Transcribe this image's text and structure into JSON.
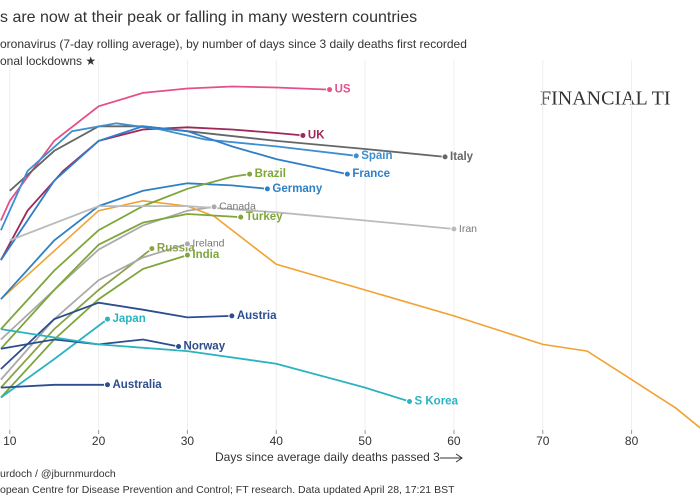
{
  "chart_data": {
    "type": "line",
    "title": "s are now at their peak or falling in many western countries",
    "subtitle": [
      "oronavirus (7-day rolling average), by number of days since 3 daily deaths first recorded",
      "onal lockdowns ★"
    ],
    "watermark": "FINANCIAL TI",
    "xlabel": "Days since average daily deaths passed 3",
    "source": [
      "urdoch / @jburnmurdoch",
      "opean Centre for Disease Prevention and Control; FT research. Data updated April 28, 17:21 BST"
    ],
    "xlim": [
      8.9,
      87.7
    ],
    "xticks": [
      10,
      20,
      30,
      40,
      50,
      60,
      70,
      80
    ],
    "ylim": [
      0.5,
      4000
    ],
    "log_y": true,
    "series": [
      {
        "color": "#f0a232",
        "x": [
          9,
          20,
          25,
          30,
          33,
          40,
          50,
          60,
          70,
          75,
          80,
          85,
          88
        ],
        "values": [
          12,
          103,
          131,
          115,
          90,
          28,
          15,
          8,
          4,
          3.4,
          1.7,
          0.85,
          0.5
        ]
      },
      {
        "name": "US",
        "color": "#e5508a",
        "x": [
          9,
          10,
          15,
          20,
          25,
          30,
          35,
          40,
          46
        ],
        "values": [
          81,
          131,
          560,
          1300,
          1800,
          2000,
          2100,
          2050,
          1950
        ]
      },
      {
        "name": "UK",
        "color": "#a0275a",
        "x": [
          9,
          12,
          16,
          20,
          25,
          30,
          35,
          40,
          43
        ],
        "values": [
          31,
          103,
          270,
          560,
          740,
          780,
          740,
          680,
          640
        ]
      },
      {
        "name": "Italy",
        "color": "#666666",
        "x": [
          10,
          15,
          20,
          25,
          30,
          40,
          50,
          59
        ],
        "values": [
          167,
          440,
          800,
          800,
          710,
          560,
          460,
          380
        ]
      },
      {
        "name": "Spain",
        "color": "#3d8fd1",
        "x": [
          9,
          12,
          17,
          22,
          27,
          32,
          40,
          49
        ],
        "values": [
          64,
          270,
          710,
          860,
          740,
          580,
          490,
          390
        ]
      },
      {
        "name": "France",
        "color": "#2f7fc8",
        "x": [
          9,
          15,
          20,
          25,
          30,
          35,
          40,
          48
        ],
        "values": [
          31,
          213,
          560,
          800,
          710,
          490,
          360,
          250
        ]
      },
      {
        "name": "Germany",
        "color": "#2e80c5",
        "x": [
          9,
          15,
          20,
          25,
          30,
          35,
          39
        ],
        "values": [
          12,
          50,
          115,
          167,
          200,
          190,
          175
        ]
      },
      {
        "name": "Brazil",
        "color": "#7ea63a",
        "x": [
          9,
          15,
          20,
          25,
          30,
          35,
          37
        ],
        "values": [
          5.8,
          24,
          64,
          115,
          175,
          235,
          250
        ]
      },
      {
        "name": "Canada",
        "color": "#aaaaaa",
        "x": [
          9,
          15,
          20,
          25,
          30,
          33
        ],
        "values": [
          4.5,
          15,
          40,
          72,
          103,
          113
        ]
      },
      {
        "name": "Turkey",
        "color": "#7ea63a",
        "x": [
          9,
          15,
          20,
          25,
          30,
          36
        ],
        "values": [
          3.6,
          15,
          45,
          77,
          95,
          88
        ]
      },
      {
        "name": "Iran",
        "color": "#bbbbbb",
        "x": [
          10,
          20,
          30,
          40,
          50,
          60
        ],
        "values": [
          50,
          115,
          115,
          99,
          81,
          66
        ]
      },
      {
        "name": "Russia",
        "color": "#8aa34a",
        "x": [
          9,
          15,
          20,
          26
        ],
        "values": [
          1.4,
          5.8,
          15,
          41
        ]
      },
      {
        "name": "Ireland",
        "color": "#aaaaaa",
        "x": [
          9,
          15,
          20,
          25,
          30
        ],
        "values": [
          1.7,
          7.4,
          19,
          33,
          46
        ]
      },
      {
        "name": "India",
        "color": "#7ea63a",
        "x": [
          9,
          15,
          20,
          25,
          30
        ],
        "values": [
          1.1,
          4.5,
          12,
          25,
          35
        ]
      },
      {
        "name": "Austria",
        "color": "#2c4d8e",
        "x": [
          9,
          15,
          20,
          25,
          30,
          35
        ],
        "values": [
          2.2,
          7.4,
          11,
          9.3,
          7.7,
          8
        ]
      },
      {
        "name": "Japan",
        "color": "#2bb3c0",
        "x": [
          9,
          15,
          21
        ],
        "values": [
          1.1,
          2.8,
          7.4
        ]
      },
      {
        "name": "Norway",
        "color": "#2c4d8e",
        "x": [
          9,
          15,
          20,
          25,
          29
        ],
        "values": [
          3.6,
          4.5,
          4,
          4.5,
          3.8
        ]
      },
      {
        "name": "Australia",
        "color": "#2c4d8e",
        "x": [
          9,
          15,
          21
        ],
        "values": [
          1.4,
          1.5,
          1.5
        ]
      },
      {
        "name": "S Korea",
        "color": "#2bb3c0",
        "x": [
          9,
          20,
          30,
          40,
          50,
          55
        ],
        "values": [
          5.8,
          4,
          3.4,
          2.5,
          1.4,
          1
        ]
      }
    ]
  }
}
